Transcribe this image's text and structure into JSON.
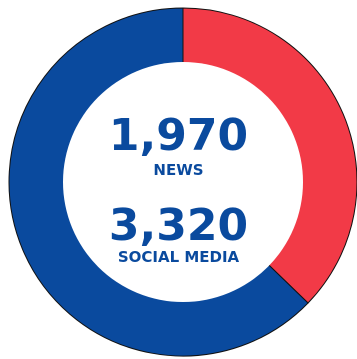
{
  "chart_data": {
    "type": "pie",
    "style": "donut",
    "categories": [
      "NEWS",
      "SOCIAL MEDIA"
    ],
    "values": [
      1970,
      3320
    ],
    "display_values": [
      "1,970",
      "3,320"
    ],
    "colors": [
      "#f23a47",
      "#0a4a9e"
    ],
    "center_text_color": "#0a4a9e",
    "title": "",
    "legend": "none"
  }
}
